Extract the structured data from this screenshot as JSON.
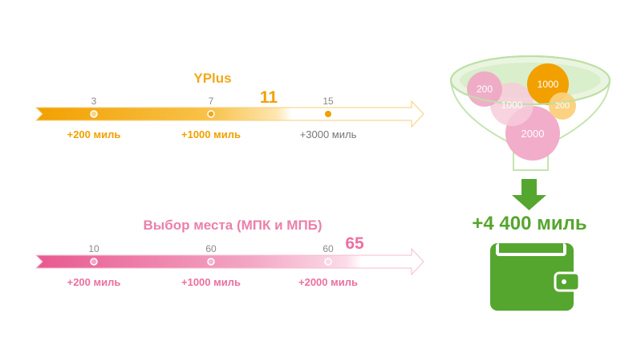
{
  "yplus": {
    "title": "YPlus",
    "current": "11",
    "ticks": [
      "3",
      "7",
      "15"
    ],
    "rewards": [
      "+200 миль",
      "+1000 миль",
      "+3000 миль"
    ]
  },
  "seat": {
    "title": "Выбор места (МПК и МПБ)",
    "current": "65",
    "ticks": [
      "10",
      "60",
      "60"
    ],
    "rewards": [
      "+200 миль",
      "+1000 миль",
      "+2000 миль"
    ]
  },
  "funnel": {
    "circles": [
      "200",
      "1000",
      "1000",
      "200",
      "2000"
    ]
  },
  "total": "+4 400 миль",
  "colors": {
    "orange": "#f2a81c",
    "pink": "#ec6fa0",
    "green": "#55a62f"
  }
}
